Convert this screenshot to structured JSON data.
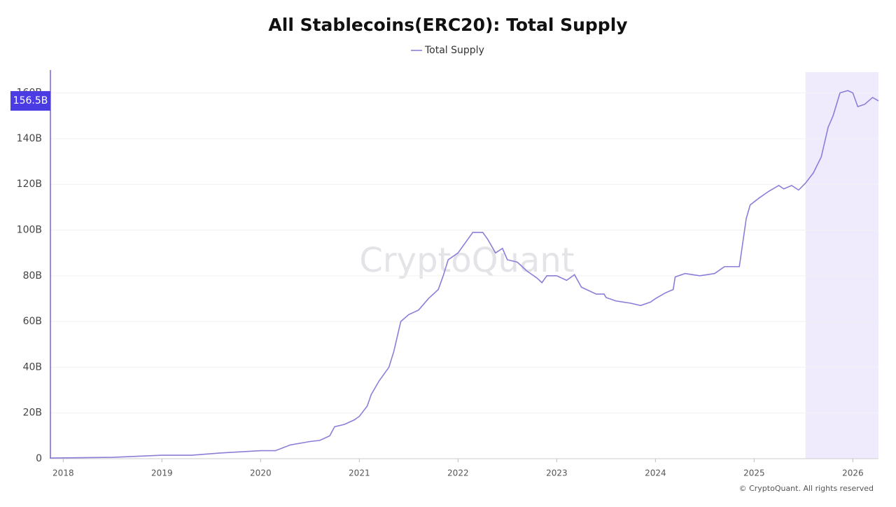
{
  "chart_data": {
    "type": "line",
    "title": "All Stablecoins(ERC20): Total Supply",
    "watermark": "CryptoQuant",
    "footer": "© CryptoQuant. All rights reserved",
    "legend": "top",
    "grid": true,
    "xlim": [
      2017.87,
      2026.26
    ],
    "xticks": [
      2018,
      2019,
      2020,
      2021,
      2022,
      2023,
      2024,
      2025,
      2026
    ],
    "ylim": [
      0,
      170
    ],
    "yticks": [
      0,
      {
        "value": 20,
        "label": "20B"
      },
      {
        "value": 40,
        "label": "40B"
      },
      {
        "value": 60,
        "label": "60B"
      },
      {
        "value": 80,
        "label": "80B"
      },
      {
        "value": 100,
        "label": "100B"
      },
      {
        "value": 120,
        "label": "120B"
      },
      {
        "value": 140,
        "label": "140B"
      },
      {
        "value": 160,
        "label": "160B"
      }
    ],
    "highlight_range": [
      2025.52,
      2026.26
    ],
    "current_value": {
      "value": 156.5,
      "label": "156.5B"
    },
    "x": [
      2017.87,
      2018.5,
      2019.0,
      2019.3,
      2019.6,
      2019.8,
      2020.0,
      2020.15,
      2020.3,
      2020.5,
      2020.6,
      2020.7,
      2020.75,
      2020.85,
      2020.95,
      2021.0,
      2021.08,
      2021.12,
      2021.2,
      2021.3,
      2021.35,
      2021.42,
      2021.5,
      2021.6,
      2021.7,
      2021.8,
      2021.85,
      2021.9,
      2022.0,
      2022.1,
      2022.15,
      2022.25,
      2022.3,
      2022.38,
      2022.45,
      2022.5,
      2022.6,
      2022.7,
      2022.8,
      2022.85,
      2022.9,
      2023.0,
      2023.1,
      2023.18,
      2023.25,
      2023.4,
      2023.48,
      2023.5,
      2023.6,
      2023.75,
      2023.85,
      2023.95,
      2024.0,
      2024.1,
      2024.18,
      2024.2,
      2024.3,
      2024.45,
      2024.6,
      2024.7,
      2024.85,
      2024.88,
      2024.92,
      2024.96,
      2025.05,
      2025.15,
      2025.25,
      2025.3,
      2025.38,
      2025.45,
      2025.52,
      2025.6,
      2025.68,
      2025.75,
      2025.8,
      2025.87,
      2025.95,
      2026.0,
      2026.05,
      2026.12,
      2026.2,
      2026.26
    ],
    "series": [
      {
        "name": "Total Supply",
        "color": "#8a7fd8",
        "values": [
          0.3,
          0.6,
          1.5,
          1.5,
          2.5,
          3,
          3.5,
          3.5,
          6,
          7.5,
          8,
          10,
          14,
          15,
          17,
          18.5,
          23,
          28,
          34,
          40,
          47,
          60,
          63,
          65,
          70,
          74,
          80,
          87,
          90,
          96,
          99,
          99,
          96,
          90,
          92,
          87,
          86,
          82,
          79,
          77,
          80,
          80,
          78,
          80.5,
          75,
          72,
          72,
          70.5,
          69,
          68,
          67,
          68.5,
          70,
          72.5,
          74,
          79.5,
          81,
          80,
          81,
          84,
          84,
          93,
          105,
          111,
          114,
          117,
          119.5,
          118,
          119.5,
          117.5,
          120.5,
          125,
          132,
          145,
          150,
          160,
          161,
          160,
          154,
          155,
          158,
          156.5
        ]
      }
    ]
  }
}
